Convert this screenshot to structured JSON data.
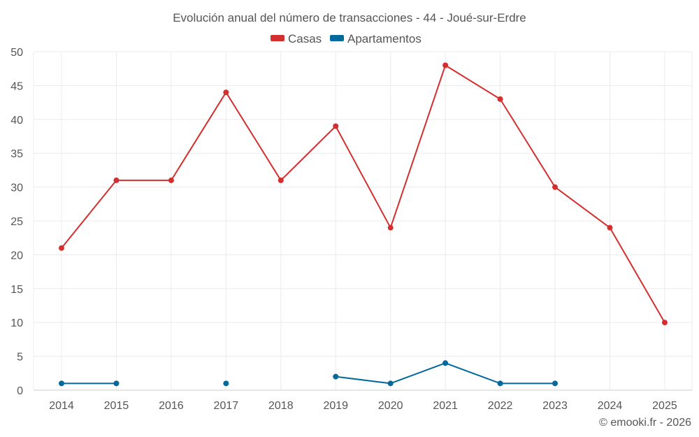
{
  "chart_data": {
    "type": "line",
    "title": "Evolución anual del número de transacciones - 44 - Joué-sur-Erdre",
    "categories": [
      "2014",
      "2015",
      "2016",
      "2017",
      "2018",
      "2019",
      "2020",
      "2021",
      "2022",
      "2023",
      "2024",
      "2025"
    ],
    "series": [
      {
        "name": "Casas",
        "color": "#d32f2f",
        "values": [
          21,
          31,
          31,
          44,
          31,
          39,
          24,
          48,
          43,
          30,
          24,
          10
        ]
      },
      {
        "name": "Apartamentos",
        "color": "#01699b",
        "values": [
          1,
          1,
          null,
          1,
          null,
          2,
          1,
          4,
          1,
          1,
          null,
          null
        ]
      }
    ],
    "ylim": [
      0,
      50
    ],
    "yticks": [
      "0",
      "5",
      "10",
      "15",
      "20",
      "25",
      "30",
      "35",
      "40",
      "45",
      "50"
    ],
    "xlabel": "",
    "ylabel": "",
    "grid": true,
    "legend_position": "top-center"
  },
  "credit": "© emooki.fr - 2026"
}
